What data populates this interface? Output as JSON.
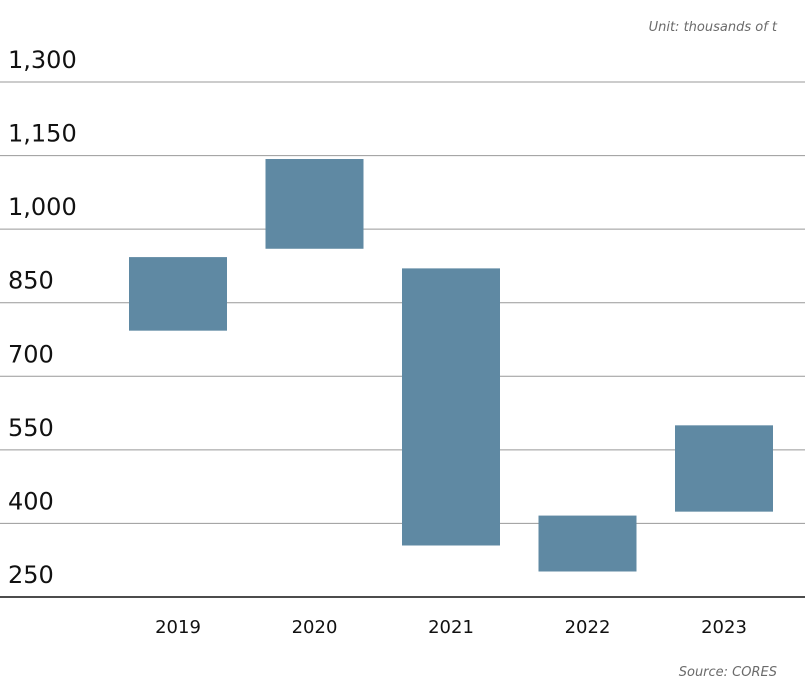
{
  "unit_label": "Unit: thousands of t",
  "source_label": "Source: CORES",
  "chart_data": {
    "type": "bar",
    "subtype": "floating-range",
    "title": "",
    "xlabel": "",
    "ylabel": "",
    "ylim": [
      250,
      1300
    ],
    "yticks": [
      250,
      400,
      550,
      700,
      850,
      1000,
      1150,
      1300
    ],
    "ytick_labels": [
      "250",
      "400",
      "550",
      "700",
      "850",
      "1,000",
      "1,150",
      "1,300"
    ],
    "categories": [
      "2019",
      "2020",
      "2021",
      "2022",
      "2023"
    ],
    "series": [
      {
        "low": [
          793,
          960,
          355,
          302,
          424
        ],
        "high": [
          943,
          1143,
          920,
          416,
          600
        ]
      }
    ],
    "grid": true,
    "bar_color": "#5f89a3",
    "grid_color": "#999999",
    "axis_color": "#111111"
  }
}
